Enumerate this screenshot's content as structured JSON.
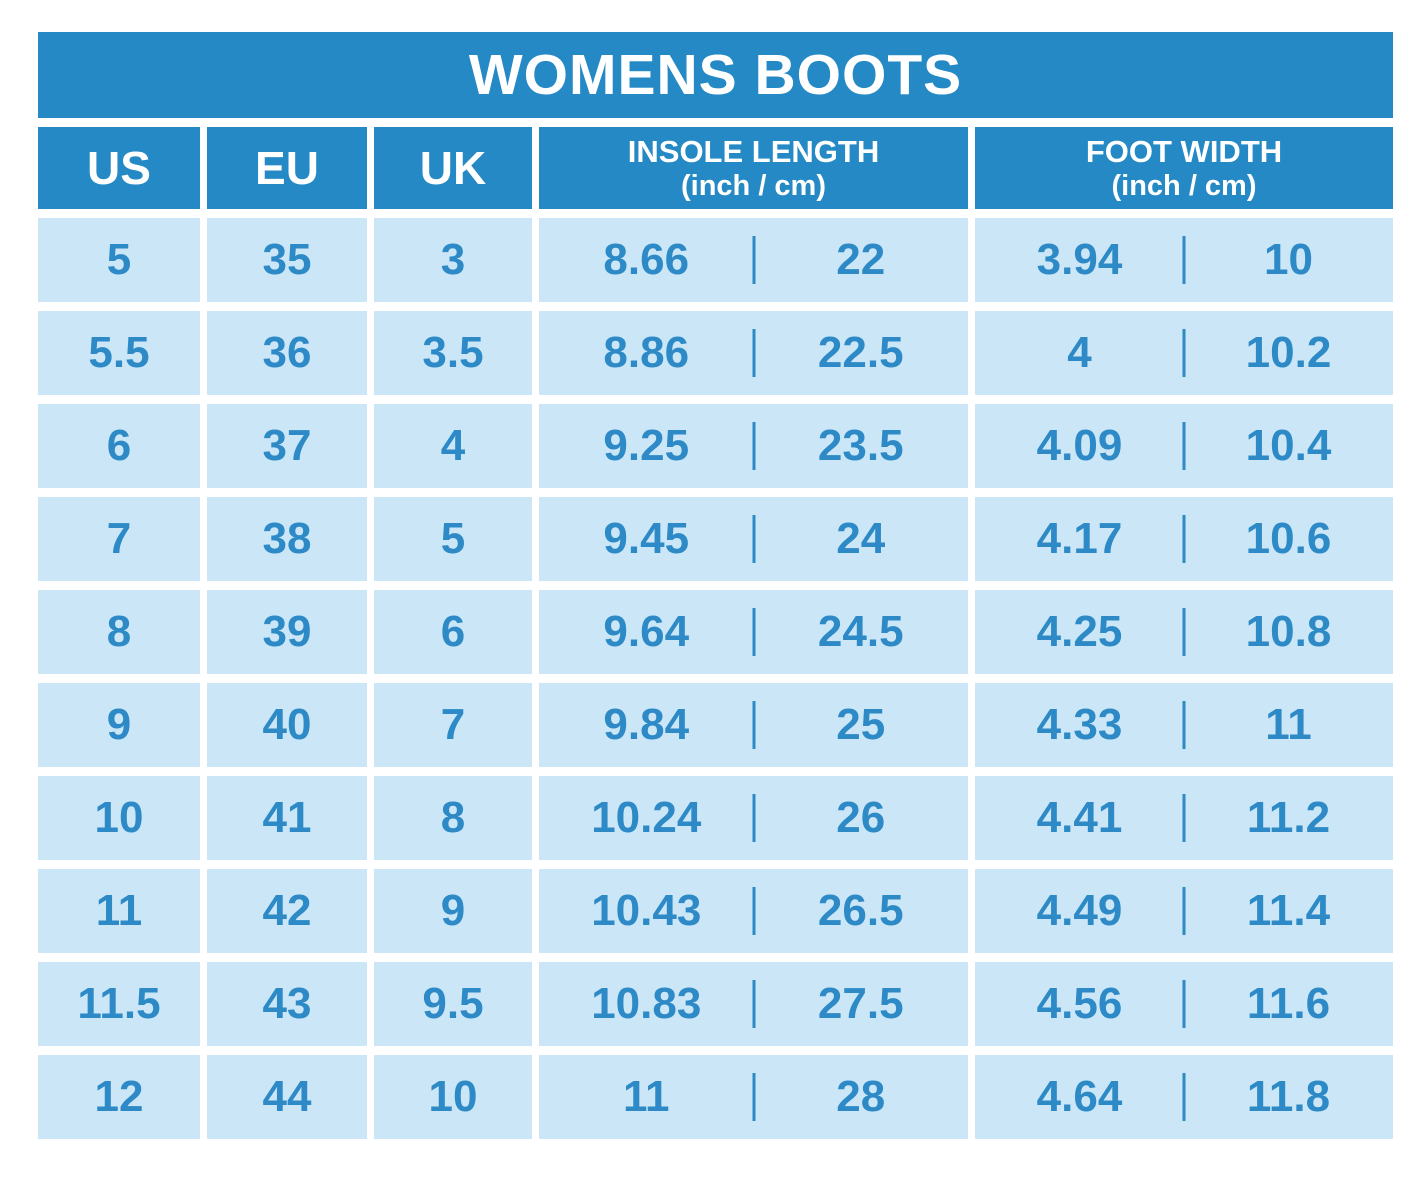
{
  "title": "WOMENS BOOTS",
  "headers": {
    "us": "US",
    "eu": "EU",
    "uk": "UK",
    "insole_title": "INSOLE LENGTH",
    "insole_sub": "(inch / cm)",
    "foot_title": "FOOT WIDTH",
    "foot_sub": "(inch / cm)"
  },
  "rows": [
    {
      "us": "5",
      "eu": "35",
      "uk": "3",
      "insole_in": "8.66",
      "insole_cm": "22",
      "width_in": "3.94",
      "width_cm": "10"
    },
    {
      "us": "5.5",
      "eu": "36",
      "uk": "3.5",
      "insole_in": "8.86",
      "insole_cm": "22.5",
      "width_in": "4",
      "width_cm": "10.2"
    },
    {
      "us": "6",
      "eu": "37",
      "uk": "4",
      "insole_in": "9.25",
      "insole_cm": "23.5",
      "width_in": "4.09",
      "width_cm": "10.4"
    },
    {
      "us": "7",
      "eu": "38",
      "uk": "5",
      "insole_in": "9.45",
      "insole_cm": "24",
      "width_in": "4.17",
      "width_cm": "10.6"
    },
    {
      "us": "8",
      "eu": "39",
      "uk": "6",
      "insole_in": "9.64",
      "insole_cm": "24.5",
      "width_in": "4.25",
      "width_cm": "10.8"
    },
    {
      "us": "9",
      "eu": "40",
      "uk": "7",
      "insole_in": "9.84",
      "insole_cm": "25",
      "width_in": "4.33",
      "width_cm": "11"
    },
    {
      "us": "10",
      "eu": "41",
      "uk": "8",
      "insole_in": "10.24",
      "insole_cm": "26",
      "width_in": "4.41",
      "width_cm": "11.2"
    },
    {
      "us": "11",
      "eu": "42",
      "uk": "9",
      "insole_in": "10.43",
      "insole_cm": "26.5",
      "width_in": "4.49",
      "width_cm": "11.4"
    },
    {
      "us": "11.5",
      "eu": "43",
      "uk": "9.5",
      "insole_in": "10.83",
      "insole_cm": "27.5",
      "width_in": "4.56",
      "width_cm": "11.6"
    },
    {
      "us": "12",
      "eu": "44",
      "uk": "10",
      "insole_in": "11",
      "insole_cm": "28",
      "width_in": "4.64",
      "width_cm": "11.8"
    }
  ],
  "colors": {
    "header_blue": "#2489c5",
    "cell_blue": "#cbe7f7",
    "text_blue": "#2d8ac6",
    "background": "#ffffff"
  },
  "chart_data": {
    "type": "table",
    "title": "WOMENS BOOTS",
    "columns": [
      "US",
      "EU",
      "UK",
      "INSOLE LENGTH inch",
      "INSOLE LENGTH cm",
      "FOOT WIDTH inch",
      "FOOT WIDTH cm"
    ],
    "rows": [
      [
        "5",
        "35",
        "3",
        "8.66",
        "22",
        "3.94",
        "10"
      ],
      [
        "5.5",
        "36",
        "3.5",
        "8.86",
        "22.5",
        "4",
        "10.2"
      ],
      [
        "6",
        "37",
        "4",
        "9.25",
        "23.5",
        "4.09",
        "10.4"
      ],
      [
        "7",
        "38",
        "5",
        "9.45",
        "24",
        "4.17",
        "10.6"
      ],
      [
        "8",
        "39",
        "6",
        "9.64",
        "24.5",
        "4.25",
        "10.8"
      ],
      [
        "9",
        "40",
        "7",
        "9.84",
        "25",
        "4.33",
        "11"
      ],
      [
        "10",
        "41",
        "8",
        "10.24",
        "26",
        "4.41",
        "11.2"
      ],
      [
        "11",
        "42",
        "9",
        "10.43",
        "26.5",
        "4.49",
        "11.4"
      ],
      [
        "11.5",
        "43",
        "9.5",
        "10.83",
        "27.5",
        "4.56",
        "11.6"
      ],
      [
        "12",
        "44",
        "10",
        "11",
        "28",
        "4.64",
        "11.8"
      ]
    ]
  }
}
